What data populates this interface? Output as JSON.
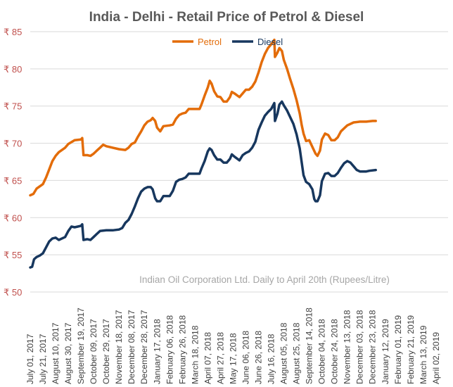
{
  "chart_data": {
    "type": "line",
    "title": "India - Delhi - Retail Price of Petrol & Diesel",
    "annotation": "Indian Oil Corporation Ltd. Daily to April 20th (Rupees/Litre)",
    "currency_symbol": "₹",
    "ylim": [
      50,
      85
    ],
    "yticks": [
      50,
      55,
      60,
      65,
      70,
      75,
      80,
      85
    ],
    "ytick_labels": [
      "₹ 50",
      "₹ 55",
      "₹ 60",
      "₹ 65",
      "₹ 70",
      "₹ 75",
      "₹ 80",
      "₹ 85"
    ],
    "grid": true,
    "legend_position": "top-center",
    "x_days_total": 659,
    "xtick_labels": [
      "July 01, 2017",
      "July 21, 2017",
      "August 10, 2017",
      "August 30, 2017",
      "September 19, 2017",
      "October 09, 2017",
      "October 29, 2017",
      "November 18, 2017",
      "December 08, 2017",
      "December 28, 2017",
      "January 17, 2018",
      "February 06, 2018",
      "February 26, 2018",
      "March 18, 2018",
      "April 07, 2018",
      "April 27, 2018",
      "May 17, 2018",
      "June 06, 2018",
      "June 26, 2018",
      "July 16, 2018",
      "August 05, 2018",
      "August 25, 2018",
      "September 14, 2018",
      "October 04, 2018",
      "October 24, 2018",
      "November 13, 2018",
      "December 03, 2018",
      "December 23, 2018",
      "January 12, 2019",
      "February 01, 2019",
      "February 21, 2019",
      "March 13, 2019",
      "April 02, 2019"
    ],
    "series": [
      {
        "name": "Petrol",
        "color": "#e36c09",
        "points": [
          [
            0,
            63.0
          ],
          [
            5,
            63.2
          ],
          [
            10,
            63.9
          ],
          [
            20,
            64.5
          ],
          [
            25,
            65.4
          ],
          [
            30,
            66.5
          ],
          [
            35,
            67.6
          ],
          [
            40,
            68.3
          ],
          [
            45,
            68.8
          ],
          [
            55,
            69.4
          ],
          [
            60,
            69.9
          ],
          [
            70,
            70.4
          ],
          [
            80,
            70.5
          ],
          [
            82,
            70.7
          ],
          [
            84,
            68.4
          ],
          [
            90,
            68.4
          ],
          [
            95,
            68.3
          ],
          [
            100,
            68.6
          ],
          [
            105,
            69.0
          ],
          [
            110,
            69.4
          ],
          [
            115,
            69.8
          ],
          [
            120,
            69.6
          ],
          [
            130,
            69.4
          ],
          [
            140,
            69.2
          ],
          [
            150,
            69.1
          ],
          [
            155,
            69.4
          ],
          [
            160,
            69.9
          ],
          [
            165,
            70.1
          ],
          [
            170,
            70.9
          ],
          [
            175,
            71.6
          ],
          [
            180,
            72.4
          ],
          [
            185,
            72.9
          ],
          [
            190,
            73.1
          ],
          [
            193,
            73.4
          ],
          [
            197,
            73.0
          ],
          [
            200,
            72.1
          ],
          [
            205,
            71.6
          ],
          [
            210,
            72.3
          ],
          [
            220,
            72.4
          ],
          [
            225,
            72.5
          ],
          [
            230,
            73.3
          ],
          [
            235,
            73.8
          ],
          [
            240,
            74.0
          ],
          [
            245,
            74.1
          ],
          [
            250,
            74.6
          ],
          [
            260,
            74.6
          ],
          [
            267,
            74.6
          ],
          [
            270,
            75.2
          ],
          [
            275,
            76.4
          ],
          [
            280,
            77.5
          ],
          [
            283,
            78.4
          ],
          [
            286,
            78.0
          ],
          [
            290,
            77.0
          ],
          [
            295,
            76.3
          ],
          [
            300,
            76.2
          ],
          [
            305,
            75.6
          ],
          [
            310,
            75.6
          ],
          [
            315,
            76.2
          ],
          [
            318,
            76.9
          ],
          [
            322,
            76.7
          ],
          [
            330,
            76.2
          ],
          [
            335,
            76.7
          ],
          [
            340,
            77.2
          ],
          [
            345,
            77.2
          ],
          [
            350,
            77.6
          ],
          [
            355,
            78.3
          ],
          [
            360,
            79.5
          ],
          [
            365,
            80.9
          ],
          [
            370,
            82.0
          ],
          [
            375,
            82.8
          ],
          [
            380,
            83.3
          ],
          [
            385,
            83.9
          ],
          [
            386,
            81.6
          ],
          [
            390,
            82.2
          ],
          [
            393,
            82.8
          ],
          [
            397,
            82.4
          ],
          [
            400,
            81.2
          ],
          [
            405,
            80.0
          ],
          [
            410,
            78.6
          ],
          [
            415,
            77.3
          ],
          [
            420,
            75.8
          ],
          [
            425,
            74.0
          ],
          [
            428,
            72.5
          ],
          [
            431,
            71.3
          ],
          [
            435,
            70.3
          ],
          [
            440,
            70.4
          ],
          [
            445,
            69.5
          ],
          [
            450,
            68.6
          ],
          [
            453,
            68.3
          ],
          [
            457,
            69.0
          ],
          [
            460,
            70.5
          ],
          [
            465,
            71.3
          ],
          [
            470,
            71.1
          ],
          [
            475,
            70.4
          ],
          [
            480,
            70.4
          ],
          [
            485,
            70.8
          ],
          [
            490,
            71.6
          ],
          [
            495,
            72.0
          ],
          [
            500,
            72.4
          ],
          [
            510,
            72.8
          ],
          [
            520,
            72.9
          ],
          [
            530,
            72.9
          ],
          [
            540,
            73.0
          ],
          [
            545,
            73.0
          ]
        ]
      },
      {
        "name": "Diesel",
        "color": "#17375e",
        "points": [
          [
            0,
            53.3
          ],
          [
            3,
            53.4
          ],
          [
            6,
            54.4
          ],
          [
            10,
            54.7
          ],
          [
            15,
            54.9
          ],
          [
            20,
            55.2
          ],
          [
            25,
            56.0
          ],
          [
            30,
            56.8
          ],
          [
            35,
            57.2
          ],
          [
            40,
            57.3
          ],
          [
            45,
            57.0
          ],
          [
            50,
            57.2
          ],
          [
            55,
            57.4
          ],
          [
            60,
            58.2
          ],
          [
            65,
            58.8
          ],
          [
            70,
            58.7
          ],
          [
            75,
            58.8
          ],
          [
            80,
            58.9
          ],
          [
            82,
            59.1
          ],
          [
            84,
            57.0
          ],
          [
            90,
            57.1
          ],
          [
            95,
            57.0
          ],
          [
            100,
            57.4
          ],
          [
            105,
            57.8
          ],
          [
            110,
            58.2
          ],
          [
            120,
            58.3
          ],
          [
            130,
            58.3
          ],
          [
            140,
            58.4
          ],
          [
            145,
            58.6
          ],
          [
            150,
            59.3
          ],
          [
            155,
            59.7
          ],
          [
            160,
            60.5
          ],
          [
            165,
            61.5
          ],
          [
            170,
            62.6
          ],
          [
            175,
            63.5
          ],
          [
            180,
            63.9
          ],
          [
            185,
            64.1
          ],
          [
            190,
            64.1
          ],
          [
            193,
            63.8
          ],
          [
            197,
            62.6
          ],
          [
            200,
            62.2
          ],
          [
            205,
            62.2
          ],
          [
            210,
            62.9
          ],
          [
            220,
            62.9
          ],
          [
            225,
            63.6
          ],
          [
            230,
            64.8
          ],
          [
            235,
            65.1
          ],
          [
            240,
            65.2
          ],
          [
            245,
            65.4
          ],
          [
            250,
            65.9
          ],
          [
            267,
            65.9
          ],
          [
            270,
            66.6
          ],
          [
            275,
            67.6
          ],
          [
            280,
            68.9
          ],
          [
            283,
            69.3
          ],
          [
            286,
            69.1
          ],
          [
            290,
            68.4
          ],
          [
            295,
            67.8
          ],
          [
            300,
            67.8
          ],
          [
            305,
            67.4
          ],
          [
            310,
            67.4
          ],
          [
            315,
            67.9
          ],
          [
            318,
            68.5
          ],
          [
            322,
            68.2
          ],
          [
            330,
            67.7
          ],
          [
            335,
            68.4
          ],
          [
            340,
            68.7
          ],
          [
            345,
            68.9
          ],
          [
            350,
            69.4
          ],
          [
            355,
            70.2
          ],
          [
            360,
            71.8
          ],
          [
            365,
            72.8
          ],
          [
            370,
            73.7
          ],
          [
            375,
            74.2
          ],
          [
            380,
            74.6
          ],
          [
            385,
            75.4
          ],
          [
            386,
            73.0
          ],
          [
            390,
            74.0
          ],
          [
            393,
            75.2
          ],
          [
            397,
            75.6
          ],
          [
            400,
            75.1
          ],
          [
            405,
            74.4
          ],
          [
            410,
            73.5
          ],
          [
            415,
            72.6
          ],
          [
            420,
            71.2
          ],
          [
            425,
            69.3
          ],
          [
            428,
            67.5
          ],
          [
            431,
            65.7
          ],
          [
            435,
            64.8
          ],
          [
            440,
            64.5
          ],
          [
            445,
            63.8
          ],
          [
            448,
            62.5
          ],
          [
            450,
            62.2
          ],
          [
            453,
            62.2
          ],
          [
            457,
            63.0
          ],
          [
            460,
            64.9
          ],
          [
            465,
            65.9
          ],
          [
            470,
            66.0
          ],
          [
            475,
            65.6
          ],
          [
            480,
            65.6
          ],
          [
            485,
            66.0
          ],
          [
            490,
            66.7
          ],
          [
            495,
            67.3
          ],
          [
            500,
            67.6
          ],
          [
            505,
            67.4
          ],
          [
            510,
            66.9
          ],
          [
            515,
            66.4
          ],
          [
            520,
            66.2
          ],
          [
            530,
            66.2
          ],
          [
            535,
            66.3
          ],
          [
            545,
            66.4
          ]
        ]
      }
    ]
  }
}
